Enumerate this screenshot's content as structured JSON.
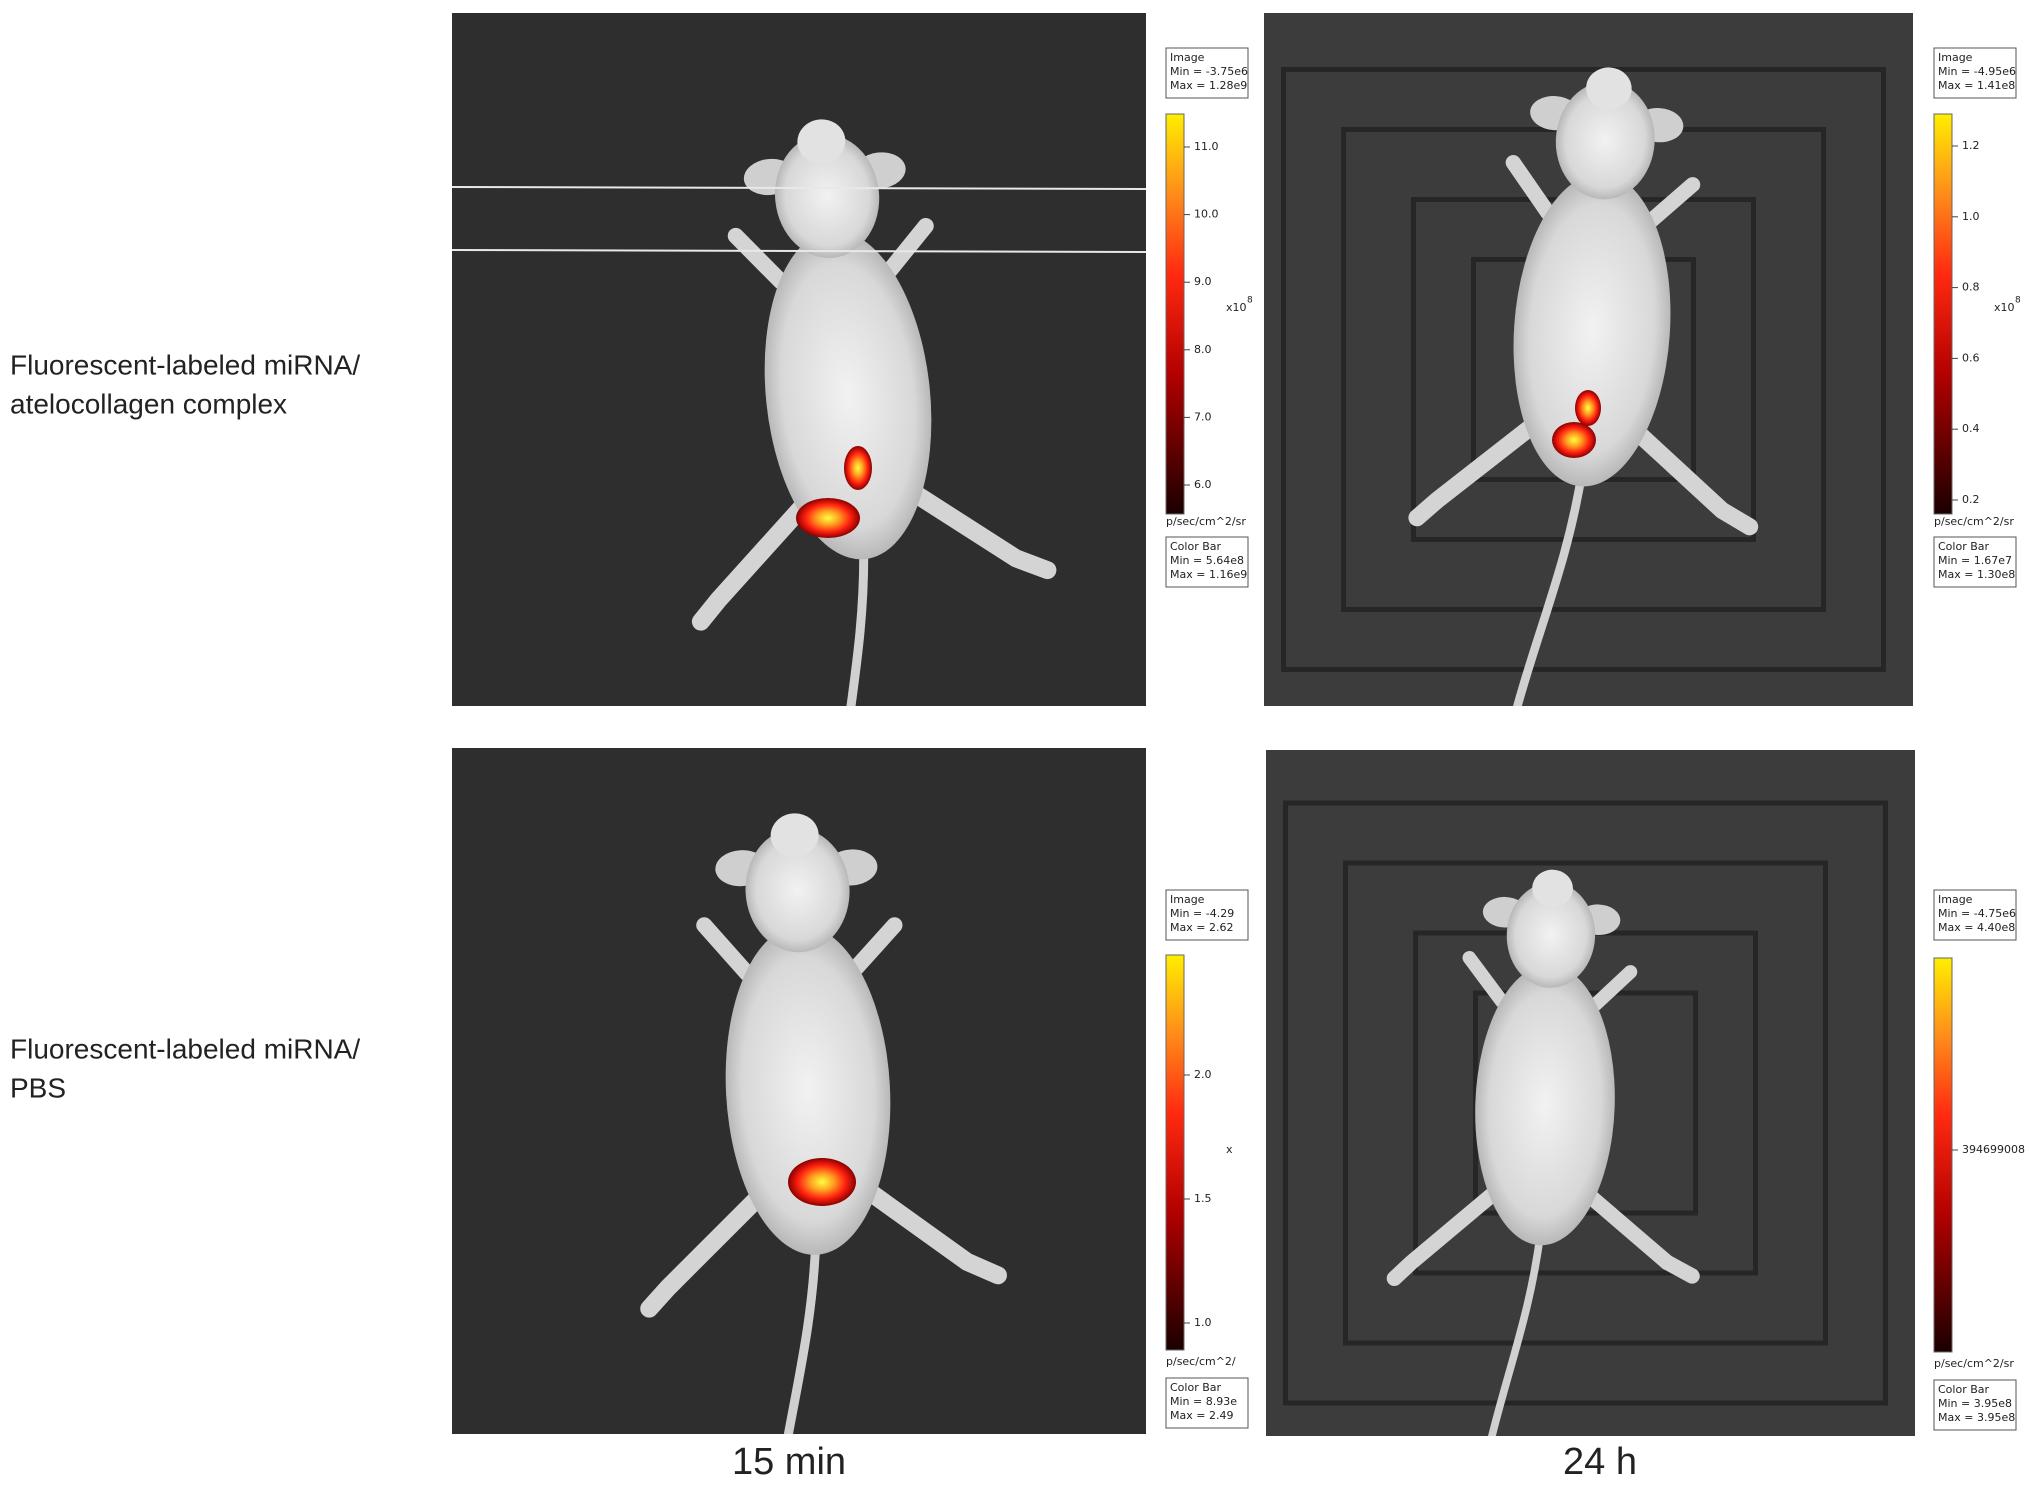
{
  "rows": [
    {
      "label": [
        "Fluorescent-labeled miRNA/",
        "atelocollagen complex"
      ]
    },
    {
      "label": [
        "Fluorescent-labeled miRNA/",
        "PBS"
      ]
    }
  ],
  "columns": [
    "15 min",
    "24 h"
  ],
  "panels": [
    {
      "image_box": {
        "title": "Image",
        "min": "Min = -3.75e6",
        "max": "Max = 1.28e9"
      },
      "ticks": [
        "11.0",
        "10.0",
        "9.0",
        "8.0",
        "7.0",
        "6.0"
      ],
      "scale_exponent": "x10",
      "scale_power": "8",
      "unit": "p/sec/cm^2/sr",
      "colorbar_box": {
        "title": "Color Bar",
        "min": "Min = 5.64e8",
        "max": "Max = 1.16e9"
      }
    },
    {
      "image_box": {
        "title": "Image",
        "min": "Min = -4.95e6",
        "max": "Max = 1.41e8"
      },
      "ticks": [
        "1.2",
        "1.0",
        "0.8",
        "0.6",
        "0.4",
        "0.2"
      ],
      "scale_exponent": "x10",
      "scale_power": "8",
      "unit": "p/sec/cm^2/sr",
      "colorbar_box": {
        "title": "Color Bar",
        "min": "Min = 1.67e7",
        "max": "Max = 1.30e8"
      }
    },
    {
      "image_box": {
        "title": "Image",
        "min": "Min = -4.29",
        "max": "Max = 2.62"
      },
      "ticks": [
        "2.0",
        "1.5",
        "1.0"
      ],
      "scale_exponent": "x",
      "unit": "p/sec/cm^2/",
      "colorbar_box": {
        "title": "Color Bar",
        "min": "Min = 8.93e",
        "max": "Max = 2.49"
      }
    },
    {
      "image_box": {
        "title": "Image",
        "min": "Min = -4.75e6",
        "max": "Max = 4.40e8"
      },
      "ticks": [
        "394699008"
      ],
      "unit": "p/sec/cm^2/sr",
      "colorbar_box": {
        "title": "Color Bar",
        "min": "Min = 3.95e8",
        "max": "Max = 3.95e8"
      }
    }
  ]
}
